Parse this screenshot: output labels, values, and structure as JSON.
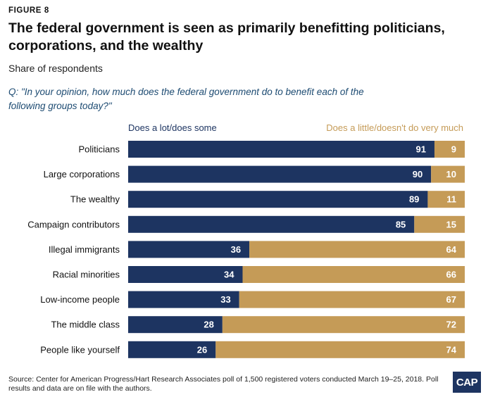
{
  "figure_label": "FIGURE 8",
  "title": "The federal government is seen as primarily benefitting politicians, corporations, and the wealthy",
  "subtitle": "Share of respondents",
  "question": "Q: \"In your opinion, how much does the federal government do to benefit each of the following groups today?\"",
  "source": "Source: Center for American Progress/Hart Research Associates poll of 1,500 registered voters conducted March 19–25, 2018. Poll results and data are on file with the authors.",
  "logo": "CAP",
  "colors": {
    "lot": "#1d3461",
    "little": "#c59b57"
  },
  "chart_data": {
    "type": "bar",
    "orientation": "horizontal",
    "stacked": true,
    "categories": [
      "Politicians",
      "Large corporations",
      "The wealthy",
      "Campaign contributors",
      "Illegal immigrants",
      "Racial minorities",
      "Low-income people",
      "The middle class",
      "People like yourself"
    ],
    "series": [
      {
        "name": "Does a lot/does some",
        "values": [
          91,
          90,
          89,
          85,
          36,
          34,
          33,
          28,
          26
        ]
      },
      {
        "name": "Does a little/doesn't do very much",
        "values": [
          9,
          10,
          11,
          15,
          64,
          66,
          67,
          72,
          74
        ]
      }
    ],
    "xlim": [
      0,
      100
    ],
    "title": "The federal government is seen as primarily benefitting politicians, corporations, and the wealthy",
    "xlabel": "",
    "ylabel": ""
  }
}
